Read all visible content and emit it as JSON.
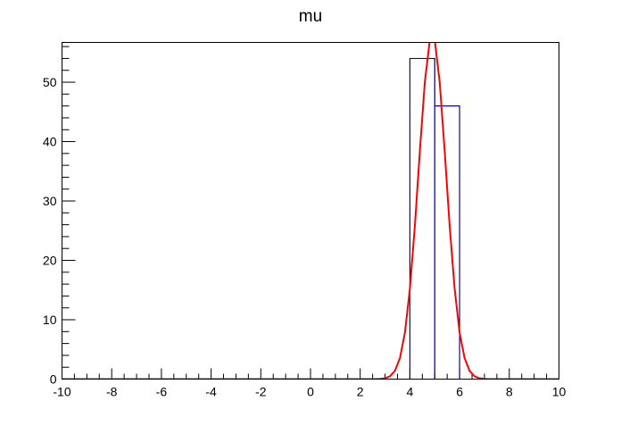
{
  "chart_data": {
    "type": "histogram",
    "title": "mu",
    "xlabel": "",
    "ylabel": "",
    "xlim": [
      -10,
      10
    ],
    "ylim": [
      0,
      56.7
    ],
    "grid": false,
    "x_ticks": [
      -10,
      -8,
      -6,
      -4,
      -2,
      0,
      2,
      4,
      6,
      8,
      10
    ],
    "y_ticks": [
      0,
      10,
      20,
      30,
      40,
      50
    ],
    "bins": [
      {
        "low": -10,
        "high": 4,
        "count": 0
      },
      {
        "low": 4,
        "high": 5,
        "count": 54
      },
      {
        "low": 5,
        "high": 6,
        "count": 46
      },
      {
        "low": 6,
        "high": 10,
        "count": 0
      }
    ],
    "fit": {
      "function": "gaus",
      "constant": 58.0,
      "mean": 4.9,
      "sigma": 0.55,
      "color": "#ff0000"
    },
    "histogram_color": "#000099"
  }
}
